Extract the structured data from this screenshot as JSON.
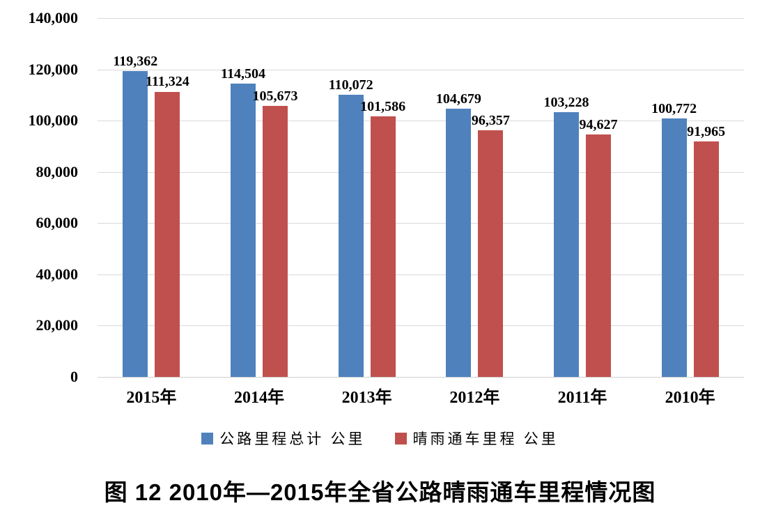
{
  "caption": "图 12  2010年—2015年全省公路晴雨通车里程情况图",
  "chart_data": {
    "type": "bar",
    "categories": [
      "2015年",
      "2014年",
      "2013年",
      "2012年",
      "2011年",
      "2010年"
    ],
    "series": [
      {
        "name": "公路里程总计 公里",
        "color": "#4F81BD",
        "values": [
          119362,
          114504,
          110072,
          104679,
          103228,
          100772
        ],
        "labels": [
          "119,362",
          "114,504",
          "110,072",
          "104,679",
          "103,228",
          "100,772"
        ]
      },
      {
        "name": "晴雨通车里程 公里",
        "color": "#C0504D",
        "values": [
          111324,
          105673,
          101586,
          96357,
          94627,
          91965
        ],
        "labels": [
          "111,324",
          "105,673",
          "101,586",
          "96,357",
          "94,627",
          "91,965"
        ]
      }
    ],
    "title": "图 12  2010年—2015年全省公路晴雨通车里程情况图",
    "xlabel": "",
    "ylabel": "",
    "ylim": [
      0,
      140000
    ],
    "ytick_interval": 20000,
    "ytick_labels": [
      "0",
      "20,000",
      "40,000",
      "60,000",
      "80,000",
      "100,000",
      "120,000",
      "140,000"
    ],
    "grid": true,
    "gridline_color": "#D9D9D9",
    "data_labels": true,
    "legend_position": "bottom"
  }
}
